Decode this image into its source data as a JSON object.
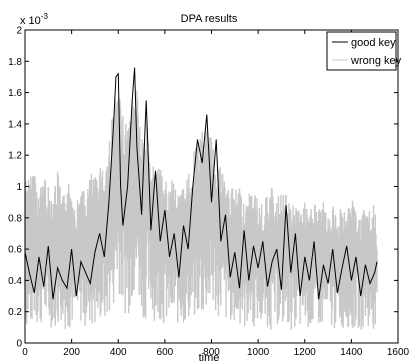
{
  "chart_data": {
    "type": "line",
    "title": "DPA results",
    "xlabel": "time",
    "ylabel": "",
    "exponent_label": "x 10",
    "exponent_power": "-3",
    "xlim": [
      0,
      1600
    ],
    "ylim": [
      0,
      2
    ],
    "x_ticks": [
      "0",
      "200",
      "400",
      "600",
      "800",
      "1000",
      "1200",
      "1400",
      "1600"
    ],
    "y_ticks": [
      "0",
      "0.2",
      "0.4",
      "0.6",
      "0.8",
      "1",
      "1.2",
      "1.4",
      "1.6",
      "1.8",
      "2"
    ],
    "x_tick_values": [
      0,
      200,
      400,
      600,
      800,
      1000,
      1200,
      1400,
      1600
    ],
    "y_tick_values": [
      0,
      0.2,
      0.4,
      0.6,
      0.8,
      1,
      1.2,
      1.4,
      1.6,
      1.8,
      2
    ],
    "grid": false,
    "legend_position": "top-right",
    "series": [
      {
        "name": "good key",
        "color": "#000000",
        "x": [
          0,
          20,
          40,
          60,
          80,
          100,
          120,
          140,
          160,
          180,
          200,
          220,
          240,
          260,
          280,
          300,
          320,
          340,
          360,
          380,
          390,
          400,
          410,
          420,
          440,
          460,
          470,
          480,
          500,
          520,
          540,
          560,
          580,
          600,
          620,
          640,
          660,
          680,
          700,
          720,
          740,
          760,
          780,
          800,
          820,
          840,
          860,
          880,
          900,
          920,
          940,
          960,
          980,
          1000,
          1020,
          1040,
          1060,
          1080,
          1100,
          1120,
          1140,
          1160,
          1180,
          1200,
          1220,
          1240,
          1260,
          1280,
          1300,
          1320,
          1340,
          1360,
          1380,
          1400,
          1420,
          1440,
          1460,
          1480,
          1500,
          1510
        ],
        "y": [
          0.58,
          0.44,
          0.32,
          0.55,
          0.36,
          0.62,
          0.28,
          0.48,
          0.4,
          0.35,
          0.6,
          0.3,
          0.52,
          0.45,
          0.38,
          0.58,
          0.7,
          0.55,
          0.9,
          1.4,
          1.7,
          1.72,
          1.0,
          0.75,
          1.0,
          1.55,
          1.76,
          1.25,
          0.82,
          1.55,
          0.72,
          1.1,
          0.65,
          0.85,
          0.55,
          0.7,
          0.42,
          0.75,
          0.6,
          1.0,
          1.3,
          1.15,
          1.46,
          0.9,
          1.3,
          0.65,
          0.82,
          0.42,
          0.58,
          0.35,
          0.72,
          0.4,
          0.62,
          0.48,
          0.65,
          0.36,
          0.52,
          0.6,
          0.34,
          0.88,
          0.45,
          0.7,
          0.3,
          0.55,
          0.4,
          0.65,
          0.28,
          0.5,
          0.38,
          0.6,
          0.32,
          0.48,
          0.62,
          0.4,
          0.55,
          0.3,
          0.5,
          0.38,
          0.45,
          0.52
        ]
      },
      {
        "name": "wrong key",
        "color": "#c8c8c8",
        "x": [
          0,
          20,
          40,
          60,
          80,
          100,
          120,
          140,
          160,
          180,
          200,
          220,
          240,
          260,
          280,
          300,
          320,
          340,
          360,
          380,
          400,
          420,
          440,
          460,
          480,
          500,
          520,
          540,
          560,
          580,
          600,
          620,
          640,
          660,
          680,
          700,
          720,
          740,
          760,
          780,
          800,
          820,
          840,
          860,
          880,
          900,
          920,
          940,
          960,
          980,
          1000,
          1020,
          1040,
          1060,
          1080,
          1100,
          1120,
          1140,
          1160,
          1180,
          1200,
          1220,
          1240,
          1260,
          1280,
          1300,
          1320,
          1340,
          1360,
          1380,
          1400,
          1420,
          1440,
          1460,
          1480,
          1500,
          1510
        ],
        "y_low": [
          0.1,
          0.06,
          0.12,
          0.08,
          0.14,
          0.07,
          0.11,
          0.09,
          0.13,
          0.06,
          0.1,
          0.08,
          0.12,
          0.09,
          0.11,
          0.07,
          0.13,
          0.1,
          0.15,
          0.22,
          0.35,
          0.2,
          0.16,
          0.25,
          0.3,
          0.18,
          0.14,
          0.2,
          0.12,
          0.15,
          0.1,
          0.13,
          0.09,
          0.12,
          0.1,
          0.14,
          0.11,
          0.16,
          0.13,
          0.18,
          0.2,
          0.15,
          0.17,
          0.12,
          0.14,
          0.1,
          0.12,
          0.08,
          0.11,
          0.09,
          0.12,
          0.08,
          0.1,
          0.07,
          0.11,
          0.09,
          0.12,
          0.08,
          0.1,
          0.07,
          0.11,
          0.09,
          0.06,
          0.1,
          0.08,
          0.12,
          0.07,
          0.1,
          0.08,
          0.11,
          0.06,
          0.09,
          0.08,
          0.1,
          0.07,
          0.09,
          0.08
        ],
        "y_high": [
          1.1,
          1.05,
          1.15,
          0.95,
          1.12,
          1.0,
          0.98,
          1.1,
          0.92,
          1.05,
          1.0,
          0.9,
          1.02,
          0.95,
          1.1,
          1.05,
          1.18,
          1.12,
          1.3,
          1.55,
          1.62,
          1.45,
          1.4,
          1.6,
          1.7,
          1.3,
          1.45,
          1.2,
          1.1,
          1.12,
          1.05,
          1.0,
          1.08,
          0.95,
          1.02,
          1.1,
          1.2,
          1.3,
          1.35,
          1.4,
          1.32,
          1.25,
          1.15,
          1.05,
          1.0,
          0.98,
          1.02,
          0.9,
          0.95,
          1.0,
          0.92,
          0.88,
          0.96,
          1.0,
          0.9,
          1.02,
          0.95,
          0.88,
          0.92,
          0.85,
          0.9,
          0.82,
          0.95,
          0.86,
          0.9,
          0.8,
          0.88,
          0.84,
          0.9,
          0.82,
          0.95,
          0.86,
          0.8,
          0.88,
          0.84,
          0.9,
          0.6
        ]
      }
    ]
  }
}
